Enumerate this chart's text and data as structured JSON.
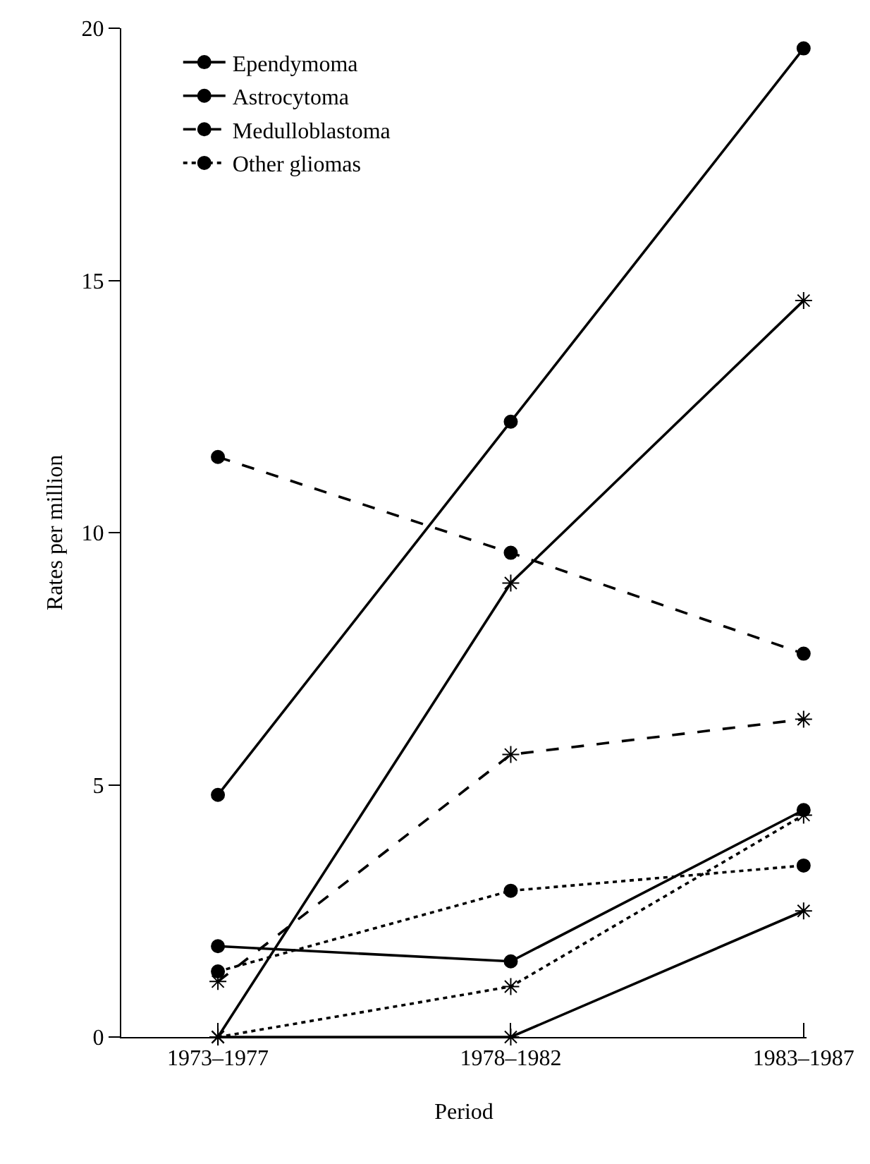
{
  "chart_data": {
    "type": "line",
    "xlabel": "Period",
    "ylabel": "Rates per million",
    "categories": [
      "1973–1977",
      "1978–1982",
      "1983–1987"
    ],
    "ylim": [
      0,
      20
    ],
    "yticks": [
      0,
      5,
      10,
      15,
      20
    ],
    "grid": false,
    "legend": "top left",
    "series": [
      {
        "name": "Ependymoma",
        "color": "#000000",
        "line_style": "solid",
        "marker": "circle",
        "values": [
          1.8,
          1.5,
          4.5
        ]
      },
      {
        "color": "#000000",
        "line_style": "solid",
        "marker": "cross",
        "values": [
          0,
          0,
          2.5
        ]
      },
      {
        "name": "Astrocytoma",
        "color": "#000000",
        "line_style": "solid",
        "marker": "circle",
        "values": [
          4.8,
          12.2,
          19.6
        ]
      },
      {
        "color": "#000000",
        "line_style": "solid",
        "marker": "cross",
        "values": [
          0,
          9.0,
          14.6
        ]
      },
      {
        "name": "Medulloblastoma",
        "color": "#000000",
        "line_style": "dashed",
        "marker": "circle",
        "values": [
          11.5,
          9.6,
          7.6
        ]
      },
      {
        "color": "#000000",
        "line_style": "dashed",
        "marker": "cross",
        "values": [
          1.1,
          5.6,
          6.3
        ]
      },
      {
        "name": "Other gliomas",
        "color": "#000000",
        "line_style": "dotted",
        "marker": "circle",
        "values": [
          1.3,
          2.9,
          3.4
        ]
      },
      {
        "color": "#000000",
        "line_style": "dotted",
        "marker": "cross",
        "values": [
          0,
          1.0,
          4.4
        ]
      }
    ]
  }
}
